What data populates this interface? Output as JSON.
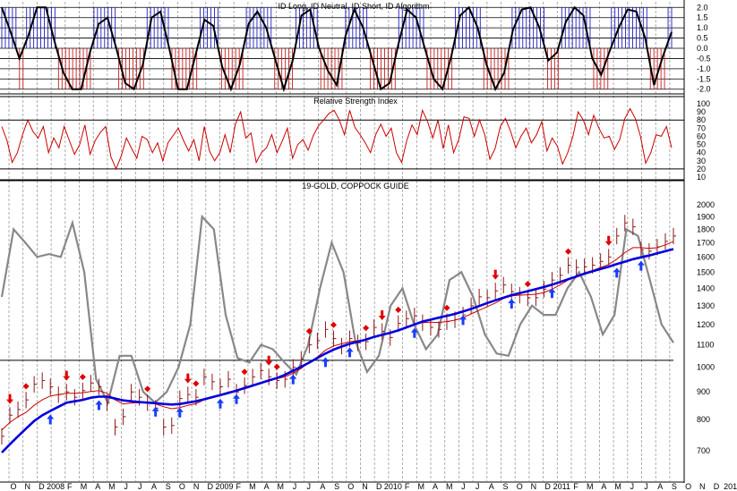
{
  "chart_data": [
    {
      "type": "histogram-with-line",
      "title": "ID Long, ID Neutral, ID Short, ID Algorithm",
      "y_ticks": [
        2.0,
        1.5,
        1.0,
        0.5,
        0.0,
        -0.5,
        -1.0,
        -1.5,
        -2.0
      ],
      "ylim": [
        -2.1,
        2.1
      ],
      "series": [
        {
          "role": "algorithm-line",
          "color": "#000000",
          "values": [
            2.0,
            0.8,
            -0.5,
            0.6,
            2.0,
            2.0,
            0.3,
            -1.2,
            -2.0,
            -2.0,
            -0.2,
            1.2,
            1.5,
            0.0,
            -1.7,
            -2.0,
            -0.8,
            1.5,
            1.8,
            0.0,
            -2.0,
            -2.0,
            -0.3,
            1.4,
            1.1,
            -0.9,
            -2.0,
            -0.8,
            1.2,
            1.8,
            1.0,
            -0.5,
            -2.0,
            -0.6,
            1.6,
            1.9,
            0.0,
            -1.1,
            -1.8,
            0.6,
            1.9,
            1.0,
            -0.5,
            -2.0,
            -1.7,
            0.2,
            1.9,
            1.5,
            0.0,
            -1.5,
            -2.0,
            -0.4,
            1.6,
            2.0,
            1.0,
            -0.8,
            -2.0,
            -1.2,
            0.9,
            1.9,
            2.0,
            1.0,
            -0.6,
            -0.2,
            1.3,
            2.0,
            1.6,
            -0.5,
            -1.3,
            -0.1,
            1.0,
            1.9,
            1.8,
            0.5,
            -1.8,
            -0.4,
            0.8
          ]
        }
      ]
    },
    {
      "type": "line",
      "title": "Relative Strength Index",
      "y_ticks": [
        100,
        90,
        80,
        70,
        60,
        50,
        40,
        30,
        20,
        10
      ],
      "ylim": [
        10,
        100
      ],
      "series": [
        {
          "color": "#cc0000",
          "values": [
            72,
            55,
            28,
            40,
            62,
            80,
            66,
            58,
            72,
            40,
            58,
            46,
            72,
            55,
            38,
            50,
            74,
            38,
            55,
            65,
            72,
            35,
            20,
            36,
            58,
            45,
            33,
            60,
            56,
            40,
            52,
            30,
            52,
            61,
            70,
            55,
            42,
            56,
            30,
            72,
            42,
            30,
            40,
            62,
            40,
            75,
            90,
            58,
            64,
            28,
            40,
            46,
            62,
            40,
            54,
            70,
            33,
            50,
            56,
            43,
            61,
            73,
            80,
            88,
            92,
            80,
            62,
            92,
            71,
            62,
            52,
            40,
            62,
            75,
            60,
            70,
            40,
            28,
            55,
            74,
            62,
            92,
            78,
            58,
            80,
            45,
            74,
            40,
            56,
            84,
            82,
            60,
            80,
            62,
            32,
            45,
            72,
            82,
            66,
            46,
            60,
            70,
            52,
            62,
            78,
            42,
            58,
            48,
            26,
            40,
            60,
            90,
            80,
            62,
            86,
            70,
            58,
            60,
            44,
            56,
            82,
            94,
            82,
            60,
            27,
            40,
            62,
            60,
            72,
            46
          ]
        }
      ]
    },
    {
      "type": "bar-line",
      "title": "19-GOLD, COPPOCK GUIDE",
      "y_scale": "log",
      "y_ticks": [
        2000,
        1900,
        1800,
        1700,
        1600,
        1500,
        1400,
        1300,
        1200,
        1100,
        1000,
        900,
        800,
        700
      ],
      "ylim": [
        620,
        2100
      ],
      "reference_line": 1030,
      "x_tick_labels": [
        "O",
        "N",
        "D",
        "2008",
        "F",
        "M",
        "A",
        "M",
        "J",
        "J",
        "A",
        "S",
        "O",
        "N",
        "D",
        "2009",
        "F",
        "M",
        "A",
        "M",
        "J",
        "J",
        "A",
        "S",
        "O",
        "N",
        "D",
        "2010",
        "F",
        "M",
        "A",
        "M",
        "J",
        "J",
        "A",
        "S",
        "O",
        "N",
        "D",
        "2011",
        "F",
        "M",
        "A",
        "M",
        "J",
        "J",
        "A",
        "S",
        "O",
        "N",
        "D",
        "201"
      ],
      "price": [
        745,
        815,
        835,
        870,
        930,
        945,
        920,
        890,
        900,
        880,
        905,
        935,
        920,
        860,
        775,
        810,
        900,
        880,
        860,
        840,
        775,
        780,
        875,
        890,
        880,
        960,
        940,
        920,
        950,
        900,
        925,
        960,
        985,
        960,
        945,
        950,
        1000,
        1035,
        1100,
        1120,
        1175,
        1130,
        1095,
        1130,
        1110,
        1115,
        1185,
        1165,
        1135,
        1205,
        1230,
        1245,
        1210,
        1185,
        1175,
        1215,
        1225,
        1250,
        1300,
        1350,
        1345,
        1385,
        1420,
        1380,
        1360,
        1345,
        1345,
        1395,
        1450,
        1480,
        1545,
        1530,
        1535,
        1545,
        1570,
        1600,
        1750,
        1850,
        1820,
        1650,
        1640,
        1670,
        1710,
        1750
      ],
      "series": [
        {
          "name": "",
          "color": "#cc0000",
          "values": [
            765,
            790,
            810,
            825,
            850,
            870,
            885,
            890,
            895,
            895,
            897,
            902,
            905,
            895,
            870,
            855,
            858,
            860,
            860,
            855,
            845,
            838,
            842,
            850,
            856,
            870,
            882,
            890,
            900,
            905,
            912,
            922,
            935,
            945,
            952,
            960,
            975,
            995,
            1020,
            1045,
            1075,
            1095,
            1105,
            1115,
            1120,
            1125,
            1140,
            1150,
            1155,
            1170,
            1185,
            1200,
            1210,
            1212,
            1210,
            1215,
            1222,
            1235,
            1255,
            1275,
            1295,
            1315,
            1340,
            1355,
            1360,
            1362,
            1365,
            1375,
            1395,
            1420,
            1450,
            1475,
            1495,
            1510,
            1530,
            1550,
            1585,
            1630,
            1665,
            1665,
            1660,
            1665,
            1685,
            1710
          ]
        },
        {
          "name": "",
          "color": "#0000dd",
          "values": [
            695,
            720,
            745,
            770,
            795,
            815,
            830,
            845,
            860,
            865,
            870,
            878,
            882,
            882,
            875,
            868,
            865,
            862,
            860,
            858,
            855,
            853,
            855,
            860,
            865,
            872,
            880,
            888,
            896,
            905,
            915,
            925,
            935,
            945,
            955,
            968,
            985,
            1002,
            1020,
            1040,
            1060,
            1078,
            1092,
            1105,
            1115,
            1125,
            1138,
            1148,
            1158,
            1170,
            1185,
            1200,
            1215,
            1225,
            1235,
            1245,
            1255,
            1268,
            1282,
            1298,
            1315,
            1330,
            1345,
            1360,
            1372,
            1383,
            1395,
            1408,
            1422,
            1438,
            1455,
            1472,
            1490,
            1505,
            1520,
            1535,
            1552,
            1568,
            1585,
            1598,
            1610,
            1625,
            1640,
            1655
          ]
        },
        {
          "name": "",
          "color": "#888888",
          "values": [
            1350,
            1800,
            1700,
            1600,
            1620,
            1600,
            1850,
            1500,
            950,
            860,
            1050,
            1050,
            900,
            860,
            900,
            1000,
            1200,
            1900,
            1800,
            1250,
            1040,
            1020,
            1100,
            1080,
            1020,
            970,
            1100,
            1400,
            1700,
            1500,
            1120,
            980,
            1050,
            1300,
            1400,
            1200,
            1080,
            1150,
            1450,
            1500,
            1350,
            1150,
            1060,
            1050,
            1200,
            1300,
            1250,
            1250,
            1400,
            1500,
            1350,
            1150,
            1250,
            1800,
            1750,
            1450,
            1200,
            1110
          ]
        }
      ]
    }
  ]
}
